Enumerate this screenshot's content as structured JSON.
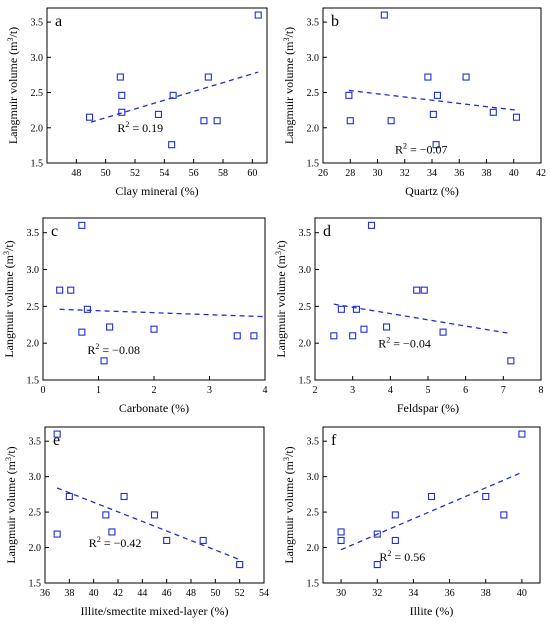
{
  "chart_data": [
    {
      "type": "scatter",
      "panel": "a",
      "xlabel": "Clay mineral (%)",
      "ylabel": "Langmuir volume (m3/t)",
      "xlim": [
        46,
        61
      ],
      "ylim": [
        1.5,
        3.7
      ],
      "xticks": [
        48,
        50,
        52,
        54,
        56,
        58,
        60
      ],
      "yticks": [
        1.5,
        2.0,
        2.5,
        3.0,
        3.5
      ],
      "points": [
        [
          48.9,
          2.15
        ],
        [
          51.0,
          2.72
        ],
        [
          51.1,
          2.46
        ],
        [
          51.1,
          2.22
        ],
        [
          53.6,
          2.19
        ],
        [
          54.5,
          1.76
        ],
        [
          54.6,
          2.46
        ],
        [
          56.7,
          2.1
        ],
        [
          57.0,
          2.72
        ],
        [
          57.6,
          2.1
        ],
        [
          60.4,
          3.6
        ]
      ],
      "trendline": [
        [
          49.0,
          2.08
        ],
        [
          60.4,
          2.79
        ]
      ],
      "r2_label": "R",
      "r2_value": "= 0.19"
    },
    {
      "type": "scatter",
      "panel": "b",
      "xlabel": "Quartz (%)",
      "ylabel": "Langmuir volume (m3/t)",
      "xlim": [
        26,
        42
      ],
      "ylim": [
        1.5,
        3.7
      ],
      "xticks": [
        26,
        28,
        30,
        32,
        34,
        36,
        38,
        40,
        42
      ],
      "yticks": [
        1.5,
        2.0,
        2.5,
        3.0,
        3.5
      ],
      "points": [
        [
          27.9,
          2.46
        ],
        [
          28.0,
          2.1
        ],
        [
          30.5,
          3.6
        ],
        [
          31.0,
          2.1
        ],
        [
          33.7,
          2.72
        ],
        [
          34.1,
          2.19
        ],
        [
          34.3,
          1.76
        ],
        [
          34.4,
          2.46
        ],
        [
          36.5,
          2.72
        ],
        [
          38.5,
          2.22
        ],
        [
          40.2,
          2.15
        ]
      ],
      "trendline": [
        [
          27.9,
          2.53
        ],
        [
          40.2,
          2.25
        ]
      ],
      "r2_label": "R",
      "r2_value": "= −0.07"
    },
    {
      "type": "scatter",
      "panel": "c",
      "xlabel": "Carbonate (%)",
      "ylabel": "Langmuir volume (m3/t)",
      "xlim": [
        0,
        4
      ],
      "ylim": [
        1.5,
        3.7
      ],
      "xticks": [
        0,
        1,
        2,
        3,
        4
      ],
      "yticks": [
        1.5,
        2.0,
        2.5,
        3.0,
        3.5
      ],
      "points": [
        [
          0.3,
          2.72
        ],
        [
          0.5,
          2.72
        ],
        [
          0.7,
          3.6
        ],
        [
          0.7,
          2.15
        ],
        [
          0.8,
          2.46
        ],
        [
          1.1,
          1.76
        ],
        [
          1.2,
          2.22
        ],
        [
          2.0,
          2.19
        ],
        [
          3.5,
          2.1
        ],
        [
          3.8,
          2.1
        ]
      ],
      "trendline": [
        [
          0.3,
          2.46
        ],
        [
          4.0,
          2.36
        ]
      ],
      "r2_label": "R",
      "r2_value": "= −0.08"
    },
    {
      "type": "scatter",
      "panel": "d",
      "xlabel": "Feldspar (%)",
      "ylabel": "Langmuir volume (m3/t)",
      "xlim": [
        2,
        8
      ],
      "ylim": [
        1.5,
        3.7
      ],
      "xticks": [
        2,
        3,
        4,
        5,
        6,
        7,
        8
      ],
      "yticks": [
        1.5,
        2.0,
        2.5,
        3.0,
        3.5
      ],
      "points": [
        [
          2.5,
          2.1
        ],
        [
          2.7,
          2.46
        ],
        [
          3.0,
          2.1
        ],
        [
          3.1,
          2.46
        ],
        [
          3.3,
          2.19
        ],
        [
          3.5,
          3.6
        ],
        [
          3.9,
          2.22
        ],
        [
          4.7,
          2.72
        ],
        [
          4.9,
          2.72
        ],
        [
          5.4,
          2.15
        ],
        [
          7.2,
          1.76
        ]
      ],
      "trendline": [
        [
          2.5,
          2.53
        ],
        [
          7.2,
          2.13
        ]
      ],
      "r2_label": "R",
      "r2_value": "= −0.04"
    },
    {
      "type": "scatter",
      "panel": "e",
      "xlabel": "Illite/smectite mixed-layer (%)",
      "ylabel": "Langmuir volume (m3/t)",
      "xlim": [
        36,
        54
      ],
      "ylim": [
        1.5,
        3.7
      ],
      "xticks": [
        36,
        38,
        40,
        42,
        44,
        46,
        48,
        50,
        52,
        54
      ],
      "yticks": [
        1.5,
        2.0,
        2.5,
        3.0,
        3.5
      ],
      "points": [
        [
          37.0,
          3.6
        ],
        [
          37.0,
          2.19
        ],
        [
          38.0,
          2.72
        ],
        [
          41.0,
          2.46
        ],
        [
          41.5,
          2.22
        ],
        [
          42.5,
          2.72
        ],
        [
          45.0,
          2.46
        ],
        [
          46.0,
          2.1
        ],
        [
          49.0,
          2.1
        ],
        [
          52.0,
          1.76
        ]
      ],
      "trendline": [
        [
          37.0,
          2.84
        ],
        [
          52.0,
          1.83
        ]
      ],
      "r2_label": "R",
      "r2_value": "= −0.42"
    },
    {
      "type": "scatter",
      "panel": "f",
      "xlabel": "Illite (%)",
      "ylabel": "Langmuir volume (m3/t)",
      "xlim": [
        29,
        41
      ],
      "ylim": [
        1.5,
        3.7
      ],
      "xticks": [
        30,
        32,
        34,
        36,
        38,
        40
      ],
      "yticks": [
        1.5,
        2.0,
        2.5,
        3.0,
        3.5
      ],
      "points": [
        [
          30.0,
          2.22
        ],
        [
          30.0,
          2.1
        ],
        [
          32.0,
          2.19
        ],
        [
          32.0,
          1.76
        ],
        [
          33.0,
          2.46
        ],
        [
          33.0,
          2.1
        ],
        [
          35.0,
          2.72
        ],
        [
          38.0,
          2.72
        ],
        [
          39.0,
          2.46
        ],
        [
          40.0,
          3.6
        ]
      ],
      "trendline": [
        [
          30.0,
          1.97
        ],
        [
          40.0,
          3.06
        ]
      ],
      "r2_label": "R",
      "r2_value": "= 0.56"
    }
  ]
}
